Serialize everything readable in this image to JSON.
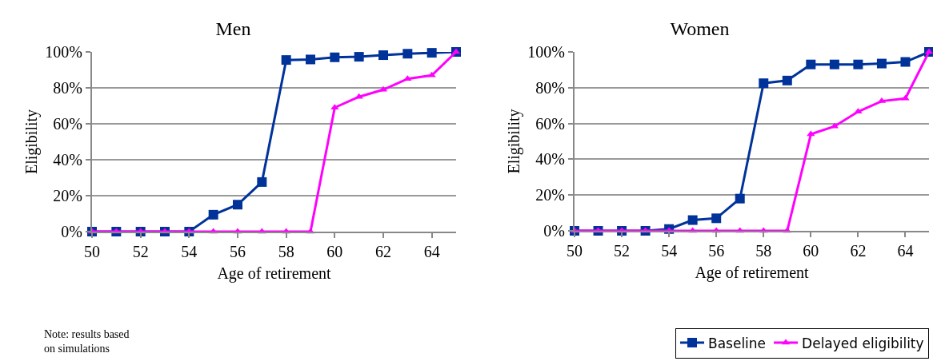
{
  "chart_data": [
    {
      "type": "line",
      "title": "Men",
      "xlabel": "Age of retirement",
      "ylabel": "Eligibility",
      "x": [
        50,
        51,
        52,
        53,
        54,
        55,
        56,
        57,
        58,
        59,
        60,
        61,
        62,
        63,
        64,
        65
      ],
      "series": [
        {
          "color": "#003399",
          "marker": "square",
          "values": [
            0,
            0,
            0,
            0,
            0,
            9.4,
            15,
            27.6,
            95.5,
            95.8,
            97,
            97.3,
            98.2,
            99,
            99.5,
            100
          ]
        },
        {
          "color": "#ff00ff",
          "marker": "triangle",
          "values": [
            0,
            0,
            0,
            0,
            0,
            0,
            0,
            0,
            0,
            0,
            69,
            75,
            79,
            85,
            87,
            100
          ]
        }
      ],
      "xlim": [
        50,
        65
      ],
      "xticks": [
        50,
        52,
        54,
        56,
        58,
        60,
        62,
        64
      ],
      "ylim": [
        0,
        100
      ],
      "yticks": [
        {
          "value": 0,
          "label": "0%"
        },
        {
          "value": 20,
          "label": "20%"
        },
        {
          "value": 40,
          "label": "40%"
        },
        {
          "value": 60,
          "label": "60%"
        },
        {
          "value": 80,
          "label": "80%"
        },
        {
          "value": 100,
          "label": "100%"
        }
      ],
      "grid": "y",
      "legend": false,
      "line_style": "solid",
      "annotations": [
        "Note: results based\non simulations"
      ]
    },
    {
      "type": "line",
      "title": "Women",
      "xlabel": "Age of retirement",
      "ylabel": "Eligibility",
      "x": [
        50,
        51,
        52,
        53,
        54,
        55,
        56,
        57,
        58,
        59,
        60,
        61,
        62,
        63,
        64,
        65
      ],
      "series": [
        {
          "name": "Baseline",
          "color": "#003399",
          "marker": "square",
          "values": [
            0,
            0,
            0,
            0,
            1,
            6,
            7,
            18,
            82.5,
            84,
            93,
            93,
            93,
            93.5,
            94.4,
            100
          ]
        },
        {
          "name": "Delayed eligibility",
          "color": "#ff00ff",
          "marker": "triangle",
          "values": [
            0,
            0,
            0,
            0,
            0,
            0,
            0,
            0,
            0,
            0,
            54,
            58.4,
            66.6,
            72.5,
            74,
            100
          ]
        }
      ],
      "xlim": [
        50,
        65
      ],
      "xticks": [
        50,
        52,
        54,
        56,
        58,
        60,
        62,
        64
      ],
      "ylim": [
        0,
        100
      ],
      "yticks": [
        {
          "value": 0,
          "label": "0%"
        },
        {
          "value": 20,
          "label": "20%"
        },
        {
          "value": 40,
          "label": "40%"
        },
        {
          "value": 60,
          "label": "60%"
        },
        {
          "value": 80,
          "label": "80%"
        },
        {
          "value": 100,
          "label": "100%"
        }
      ],
      "grid": "y",
      "legend": "bottom",
      "line_style": "solid"
    }
  ]
}
